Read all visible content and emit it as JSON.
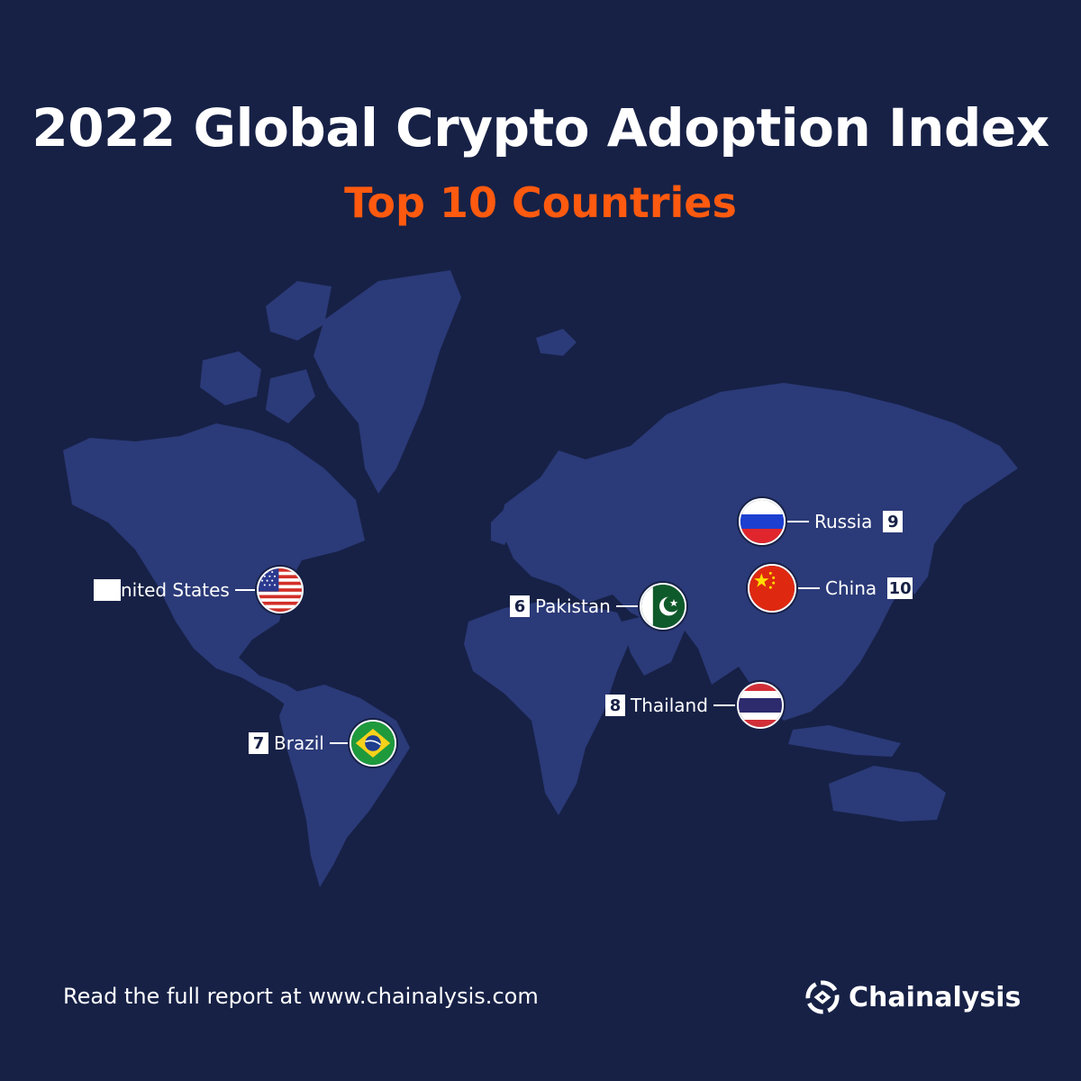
{
  "title": "2022 Global Crypto Adoption Index",
  "subtitle": "Top 10 Countries",
  "colors": {
    "background": "#172146",
    "land": "#2b3a78",
    "accent": "#ff5a0f",
    "text": "#ffffff"
  },
  "markers": [
    {
      "id": "us",
      "rank": "",
      "name": "nited States",
      "flag": "us-flag-icon"
    },
    {
      "id": "pakistan",
      "rank": "6",
      "name": "Pakistan",
      "flag": "pakistan-flag-icon"
    },
    {
      "id": "brazil",
      "rank": "7",
      "name": "Brazil",
      "flag": "brazil-flag-icon"
    },
    {
      "id": "thailand",
      "rank": "8",
      "name": "Thailand",
      "flag": "thailand-flag-icon"
    },
    {
      "id": "russia",
      "rank": "9",
      "name": "Russia",
      "flag": "russia-flag-icon"
    },
    {
      "id": "china",
      "rank": "10",
      "name": "China",
      "flag": "china-flag-icon"
    }
  ],
  "footer": {
    "text": "Read the full report at www.chainalysis.com",
    "brand": "Chainalysis",
    "logo_icon": "chainalysis-logo-icon"
  }
}
